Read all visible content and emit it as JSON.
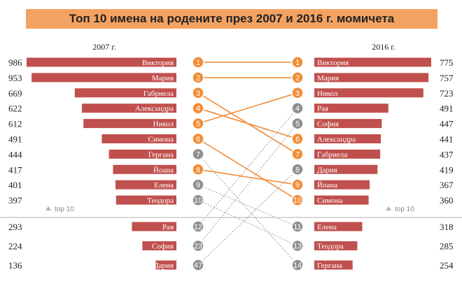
{
  "title": "Топ 10 имена на родените през 2007 и 2016 г. момичета",
  "top10_label": "top 10",
  "colors": {
    "bar": "#c0504d",
    "orange": "#f28c38",
    "gray": "#8f8f8f",
    "title_bg": "#f4a261"
  },
  "chart_data": {
    "type": "bar",
    "left": {
      "year": "2007 г.",
      "rows": [
        {
          "name": "Виктория",
          "value": 986,
          "rank": 1
        },
        {
          "name": "Мария",
          "value": 953,
          "rank": 2
        },
        {
          "name": "Габриела",
          "value": 669,
          "rank": 3
        },
        {
          "name": "Александра",
          "value": 622,
          "rank": 4
        },
        {
          "name": "Никол",
          "value": 612,
          "rank": 5
        },
        {
          "name": "Симона",
          "value": 491,
          "rank": 6
        },
        {
          "name": "Гергана",
          "value": 444,
          "rank": 7
        },
        {
          "name": "Йоана",
          "value": 417,
          "rank": 8
        },
        {
          "name": "Елена",
          "value": 401,
          "rank": 9
        },
        {
          "name": "Теодора",
          "value": 397,
          "rank": 10
        }
      ],
      "extra": [
        {
          "name": "Рая",
          "value": 293,
          "rank": 12
        },
        {
          "name": "София",
          "value": 224,
          "rank": 23
        },
        {
          "name": "Дария",
          "value": 136,
          "rank": 47
        }
      ]
    },
    "right": {
      "year": "2016 г.",
      "rows": [
        {
          "name": "Виктория",
          "value": 775,
          "rank": 1
        },
        {
          "name": "Мария",
          "value": 757,
          "rank": 2
        },
        {
          "name": "Никол",
          "value": 723,
          "rank": 3
        },
        {
          "name": "Рая",
          "value": 491,
          "rank": 4
        },
        {
          "name": "София",
          "value": 447,
          "rank": 5
        },
        {
          "name": "Александра",
          "value": 441,
          "rank": 6
        },
        {
          "name": "Габриела",
          "value": 437,
          "rank": 7
        },
        {
          "name": "Дария",
          "value": 419,
          "rank": 8
        },
        {
          "name": "Йоана",
          "value": 367,
          "rank": 9
        },
        {
          "name": "Симона",
          "value": 360,
          "rank": 10
        }
      ],
      "extra": [
        {
          "name": "Елена",
          "value": 318,
          "rank": 11
        },
        {
          "name": "Теодора",
          "value": 285,
          "rank": 13
        },
        {
          "name": "Гергана",
          "value": 254,
          "rank": 14
        }
      ]
    }
  }
}
